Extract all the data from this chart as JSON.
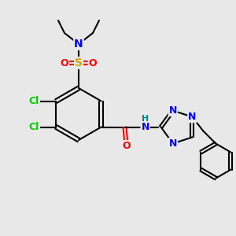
{
  "background_color": "#e8e8e8",
  "bond_color": "#000000",
  "atom_colors": {
    "N": "#0000ff",
    "O": "#ff0000",
    "S": "#ccaa00",
    "Cl": "#00cc00",
    "H": "#008888",
    "C": "#000000"
  }
}
